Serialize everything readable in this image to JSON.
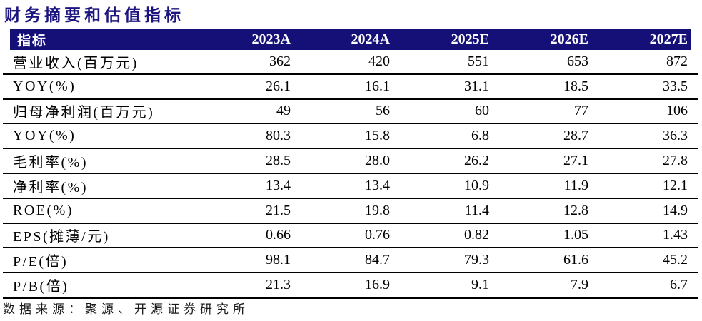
{
  "title": "财务摘要和估值指标",
  "source_note": "数据来源：聚源、开源证券研究所",
  "colors": {
    "header_bg": "#151077",
    "title_text": "#1d157f"
  },
  "table": {
    "columns": [
      "指标",
      "2023A",
      "2024A",
      "2025E",
      "2026E",
      "2027E"
    ],
    "rows": [
      {
        "label": "营业收入(百万元)",
        "values": [
          "362",
          "420",
          "551",
          "653",
          "872"
        ]
      },
      {
        "label": "YOY(%)",
        "values": [
          "26.1",
          "16.1",
          "31.1",
          "18.5",
          "33.5"
        ]
      },
      {
        "label": "归母净利润(百万元)",
        "values": [
          "49",
          "56",
          "60",
          "77",
          "106"
        ]
      },
      {
        "label": "YOY(%)",
        "values": [
          "80.3",
          "15.8",
          "6.8",
          "28.7",
          "36.3"
        ]
      },
      {
        "label": "毛利率(%)",
        "values": [
          "28.5",
          "28.0",
          "26.2",
          "27.1",
          "27.8"
        ]
      },
      {
        "label": "净利率(%)",
        "values": [
          "13.4",
          "13.4",
          "10.9",
          "11.9",
          "12.1"
        ]
      },
      {
        "label": "ROE(%)",
        "values": [
          "21.5",
          "19.8",
          "11.4",
          "12.8",
          "14.9"
        ]
      },
      {
        "label": "EPS(摊薄/元)",
        "values": [
          "0.66",
          "0.76",
          "0.82",
          "1.05",
          "1.43"
        ]
      },
      {
        "label": "P/E(倍)",
        "values": [
          "98.1",
          "84.7",
          "79.3",
          "61.6",
          "45.2"
        ]
      },
      {
        "label": "P/B(倍)",
        "values": [
          "21.3",
          "16.9",
          "9.1",
          "7.9",
          "6.7"
        ]
      }
    ]
  }
}
